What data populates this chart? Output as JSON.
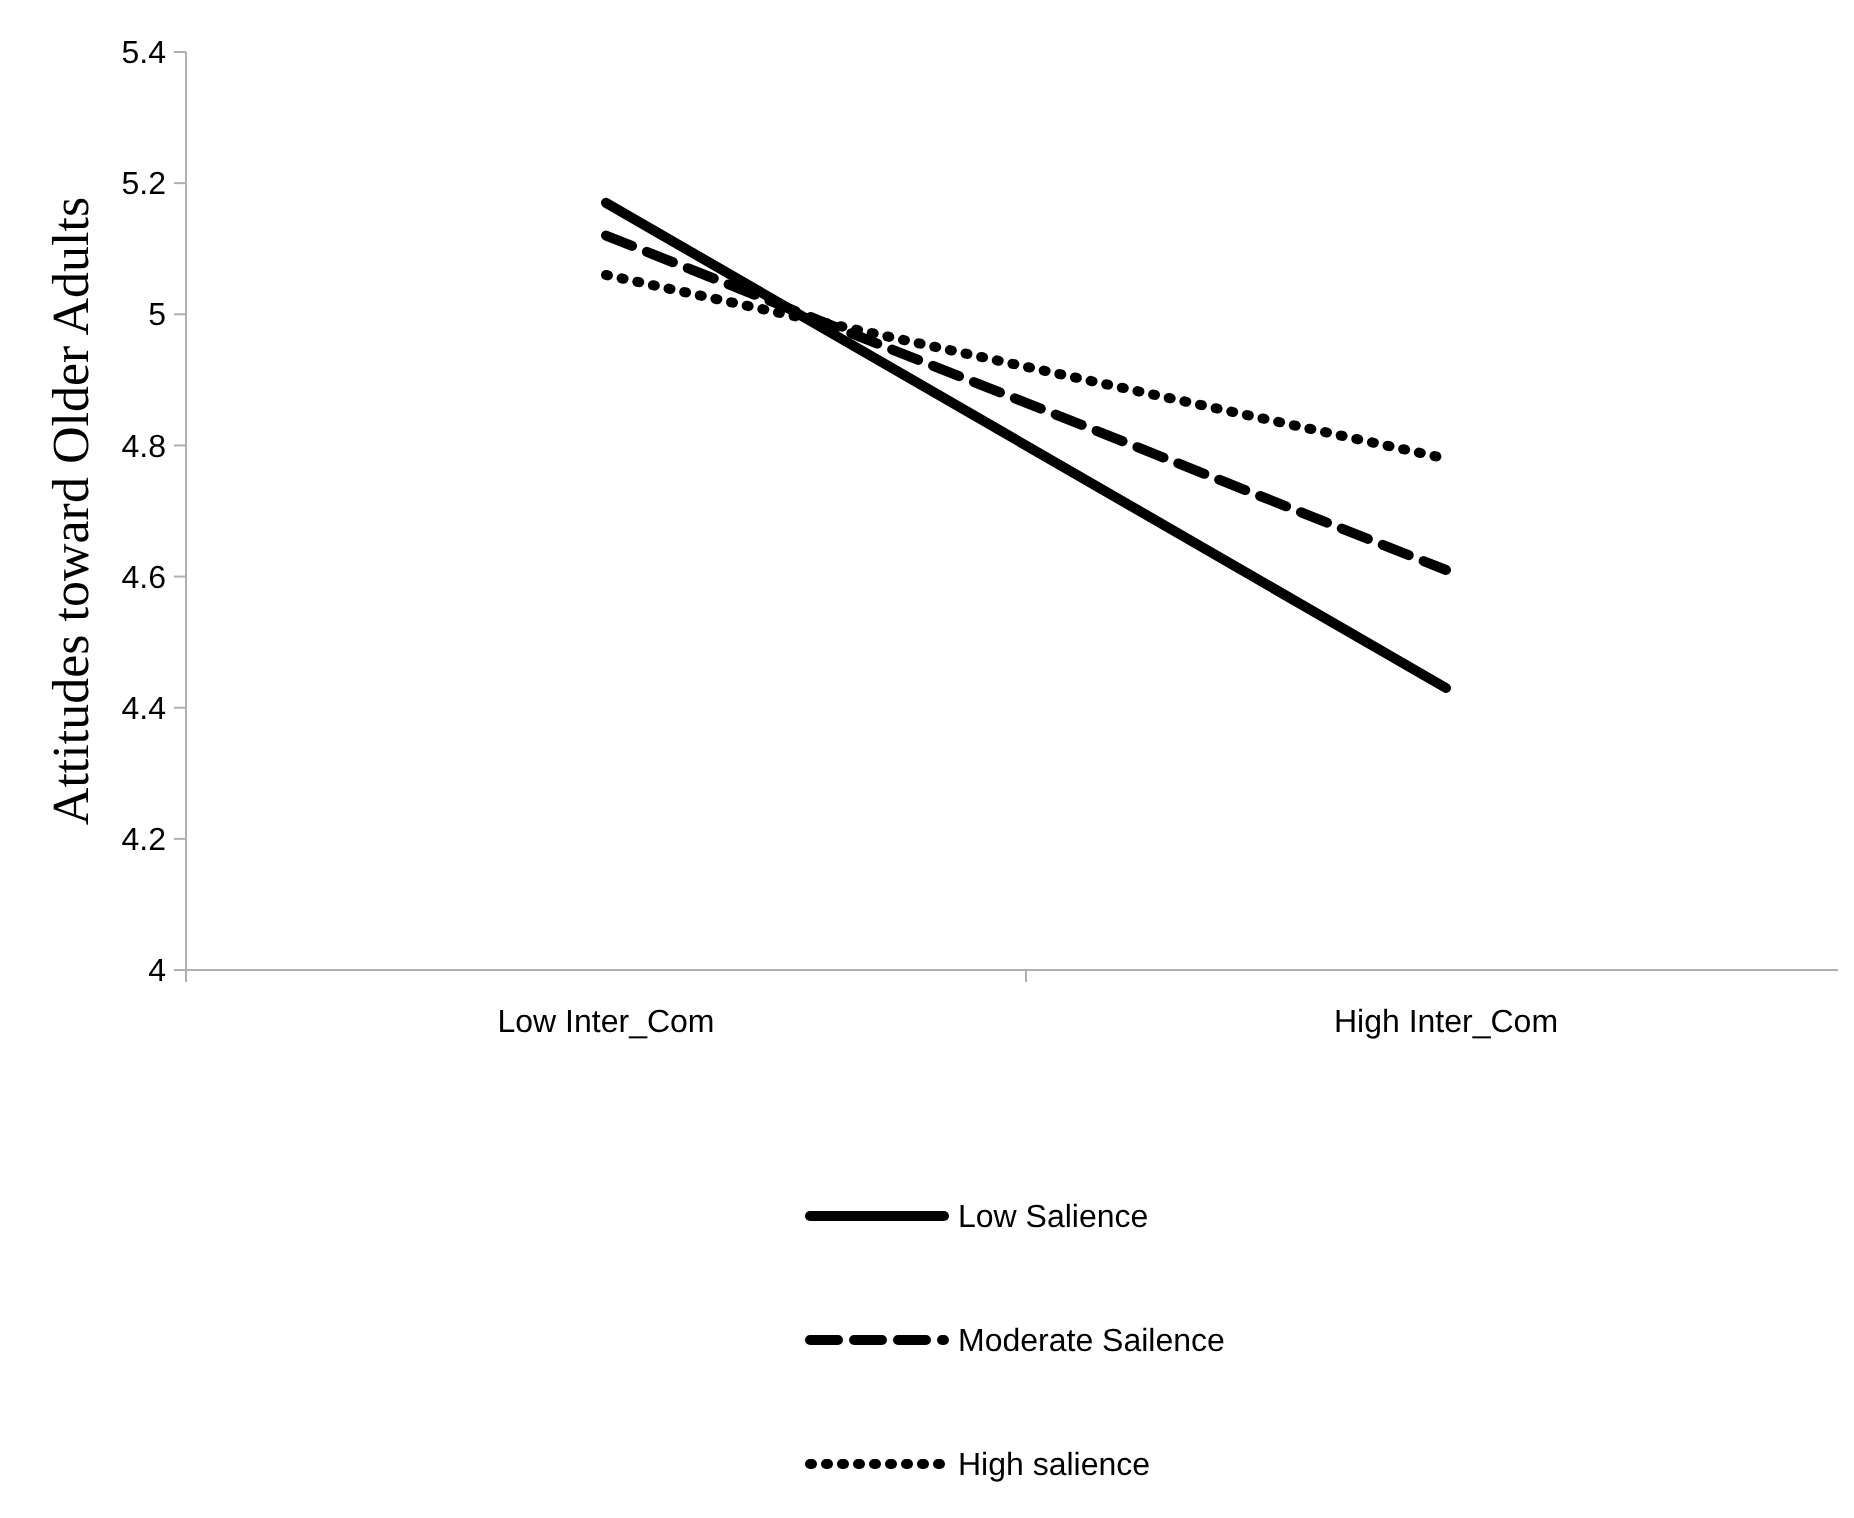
{
  "chart_data": {
    "type": "line",
    "ylabel": "Attitudes toward Older Adults",
    "categories": [
      "Low Inter_Com",
      "High Inter_Com"
    ],
    "series": [
      {
        "name": "Low Salience",
        "color": "#000000",
        "line_style": "solid",
        "values": [
          5.17,
          4.43
        ]
      },
      {
        "name": "Moderate Sailence",
        "color": "#000000",
        "line_style": "dashed",
        "values": [
          5.12,
          4.61
        ]
      },
      {
        "name": "High salience",
        "color": "#000000",
        "line_style": "dotted",
        "values": [
          5.06,
          4.78
        ]
      }
    ],
    "ylim": [
      4,
      5.4
    ],
    "yticks": [
      4,
      4.2,
      4.4,
      4.6,
      4.8,
      5,
      5.2,
      5.4
    ],
    "grid": false,
    "legend": "bottom",
    "marker": "none"
  }
}
